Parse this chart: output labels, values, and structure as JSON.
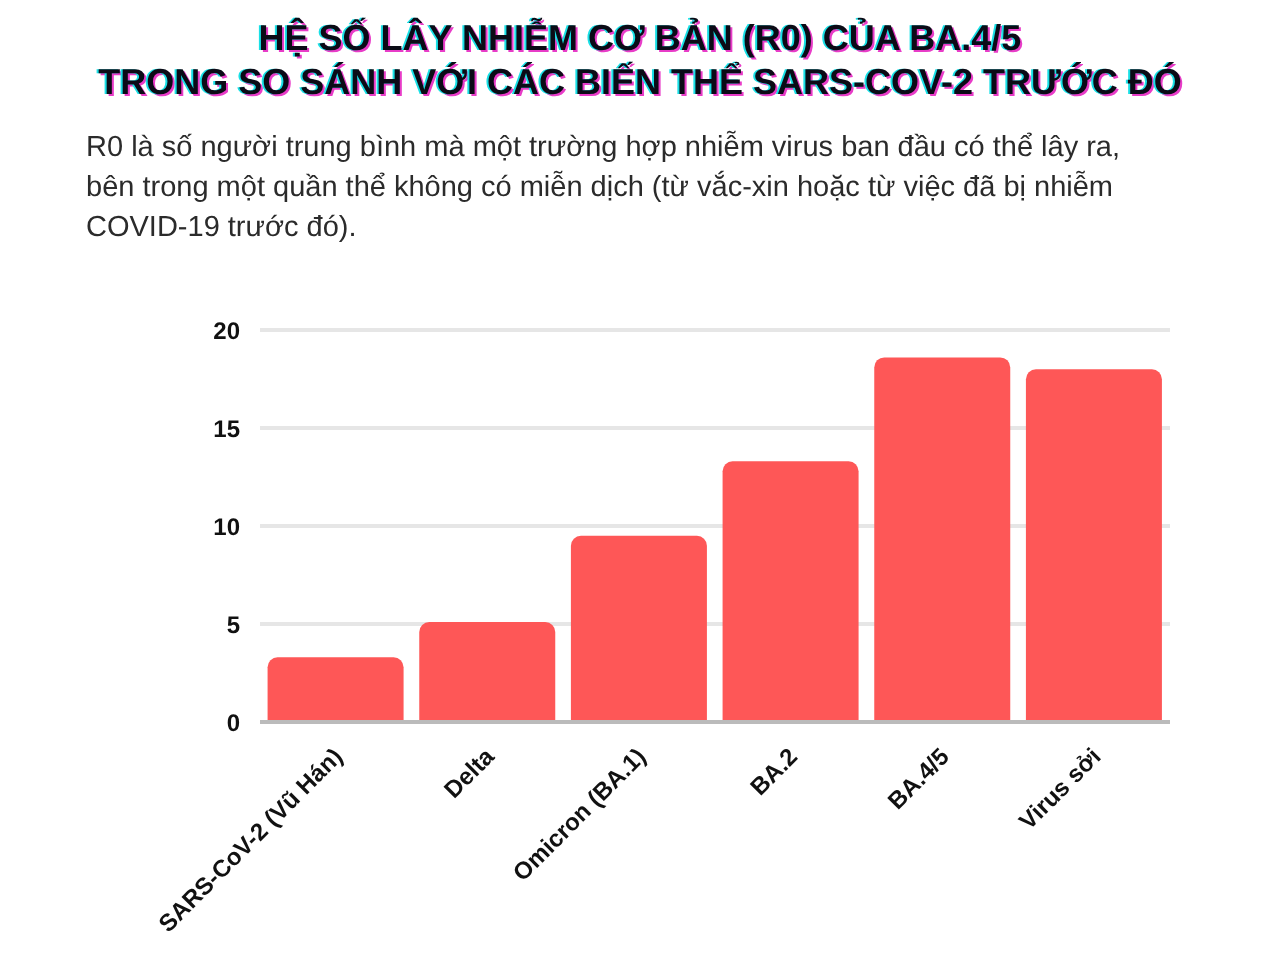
{
  "chart_data": {
    "type": "bar",
    "title": "HỆ SỐ LÂY NHIỄM CƠ BẢN (R0) CỦA BA.4/5\nTRONG SO SÁNH VỚI CÁC BIẾN THỂ SARS-COV-2 TRƯỚC ĐÓ",
    "subtitle": "R0 là số người trung bình mà một trường hợp nhiễm virus ban đầu có thể lây ra, bên trong một quần thể không có miễn dịch (từ vắc-xin hoặc từ việc đã bị nhiễm COVID-19 trước đó).",
    "categories": [
      "SARS-CoV-2 (Vũ Hán)",
      "Delta",
      "Omicron (BA.1)",
      "BA.2",
      "BA.4/5",
      "Virus sởi"
    ],
    "values": [
      3.3,
      5.1,
      9.5,
      13.3,
      18.6,
      18.0
    ],
    "color": "#fe5757",
    "ylim": [
      0,
      20
    ],
    "yticks": [
      0,
      5,
      10,
      15,
      20
    ],
    "grid": "y"
  }
}
